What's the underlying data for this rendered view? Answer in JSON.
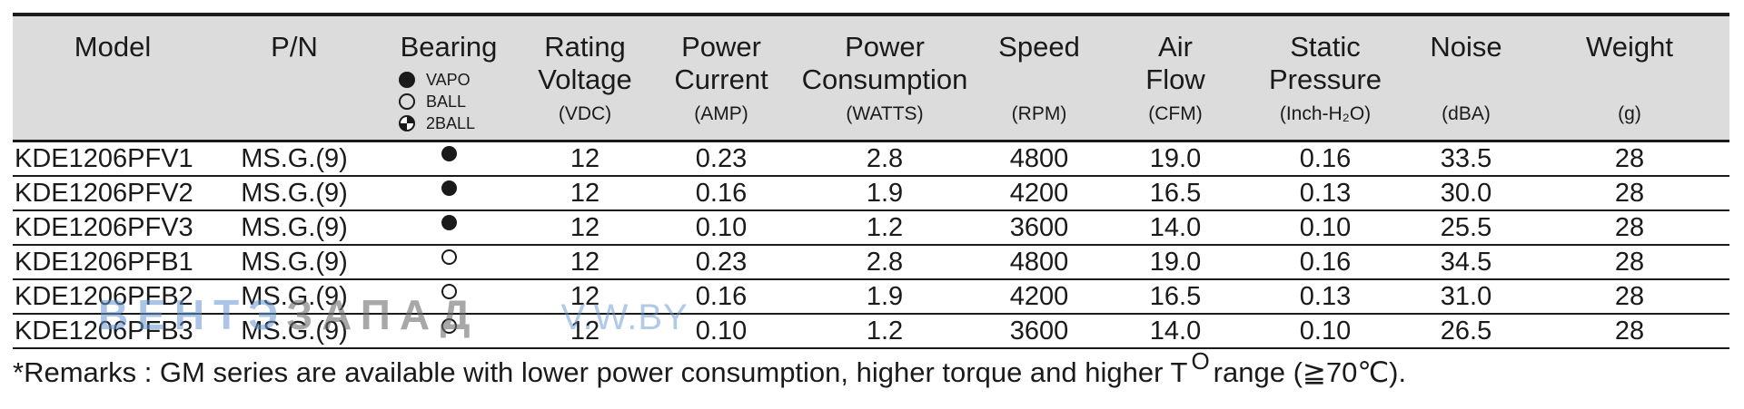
{
  "header": {
    "model": "Model",
    "pn": "P/N",
    "bearing": "Bearing",
    "bearing_legend": [
      {
        "icon": "filled-circle",
        "label": "VAPO"
      },
      {
        "icon": "open-circle",
        "label": "BALL"
      },
      {
        "icon": "half-filled-circle",
        "label": "2BALL"
      }
    ],
    "voltage_1": "Rating",
    "voltage_2": "Voltage",
    "voltage_unit": "(VDC)",
    "current_1": "Power",
    "current_2": "Current",
    "current_unit": "(AMP)",
    "consumption_1": "Power",
    "consumption_2": "Consumption",
    "consumption_unit": "(WATTS)",
    "speed": "Speed",
    "speed_unit": "(RPM)",
    "airflow_1": "Air",
    "airflow_2": "Flow",
    "airflow_unit": "(CFM)",
    "pressure_1": "Static",
    "pressure_2": "Pressure",
    "pressure_unit": "(Inch-H₂O)",
    "noise": "Noise",
    "noise_unit": "(dBA)",
    "weight": "Weight",
    "weight_unit": "(g)"
  },
  "rows": [
    {
      "model": "KDE1206PFV1",
      "pn": "MS.G.(9)",
      "bearing": "VAPO",
      "voltage": "12",
      "current": "0.23",
      "consumption": "2.8",
      "speed": "4800",
      "airflow": "19.0",
      "pressure": "0.16",
      "noise": "33.5",
      "weight": "28"
    },
    {
      "model": "KDE1206PFV2",
      "pn": "MS.G.(9)",
      "bearing": "VAPO",
      "voltage": "12",
      "current": "0.16",
      "consumption": "1.9",
      "speed": "4200",
      "airflow": "16.5",
      "pressure": "0.13",
      "noise": "30.0",
      "weight": "28"
    },
    {
      "model": "KDE1206PFV3",
      "pn": "MS.G.(9)",
      "bearing": "VAPO",
      "voltage": "12",
      "current": "0.10",
      "consumption": "1.2",
      "speed": "3600",
      "airflow": "14.0",
      "pressure": "0.10",
      "noise": "25.5",
      "weight": "28"
    },
    {
      "model": "KDE1206PFB1",
      "pn": "MS.G.(9)",
      "bearing": "BALL",
      "voltage": "12",
      "current": "0.23",
      "consumption": "2.8",
      "speed": "4800",
      "airflow": "19.0",
      "pressure": "0.16",
      "noise": "34.5",
      "weight": "28"
    },
    {
      "model": "KDE1206PFB2",
      "pn": "MS.G.(9)",
      "bearing": "BALL",
      "voltage": "12",
      "current": "0.16",
      "consumption": "1.9",
      "speed": "4200",
      "airflow": "16.5",
      "pressure": "0.13",
      "noise": "31.0",
      "weight": "28"
    },
    {
      "model": "KDE1206PFB3",
      "pn": "MS.G.(9)",
      "bearing": "BALL",
      "voltage": "12",
      "current": "0.10",
      "consumption": "1.2",
      "speed": "3600",
      "airflow": "14.0",
      "pressure": "0.10",
      "noise": "26.5",
      "weight": "28"
    }
  ],
  "remarks": {
    "before": "*Remarks : GM series are available with lower power consumption, higher torque and higher T",
    "sup": "O",
    "after": "range (≧70℃)."
  },
  "watermark": {
    "part1": "ВЕНТЭ",
    "part2": "ЗАПАД",
    "part3": "V.W.BY"
  }
}
